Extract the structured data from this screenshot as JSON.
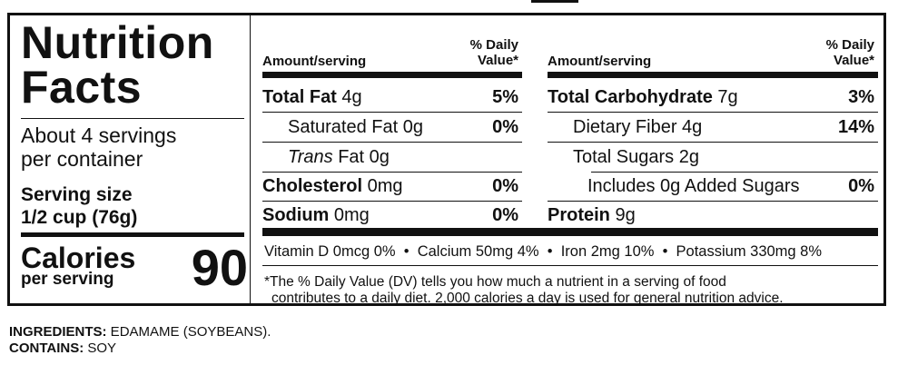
{
  "label": {
    "title_line1": "Nutrition",
    "title_line2": "Facts",
    "servings_line1": "About 4 servings",
    "servings_line2": "per container",
    "serving_size_label": "Serving size",
    "serving_size_value": "1/2 cup (76g)",
    "calories_label": "Calories",
    "calories_sub": "per serving",
    "calories_value": "90",
    "col_head_amount": "Amount/serving",
    "col_head_dv_line1": "% Daily",
    "col_head_dv_line2": "Value*",
    "left_rows": [
      {
        "name": "Total Fat",
        "amount": " 4g",
        "dv": "5%"
      },
      {
        "name": "Saturated Fat",
        "amount": " 0g",
        "dv": "0%"
      },
      {
        "name": "Trans",
        "amount": " Fat 0g",
        "dv": ""
      },
      {
        "name": "Cholesterol",
        "amount": " 0mg",
        "dv": "0%"
      },
      {
        "name": "Sodium",
        "amount": " 0mg",
        "dv": "0%"
      }
    ],
    "right_rows": [
      {
        "name": "Total Carbohydrate",
        "amount": " 7g",
        "dv": "3%"
      },
      {
        "name": "Dietary Fiber",
        "amount": " 4g",
        "dv": "14%"
      },
      {
        "name": "Total Sugars",
        "amount": " 2g",
        "dv": ""
      },
      {
        "name": "Includes 0g Added Sugars",
        "amount": "",
        "dv": "0%"
      },
      {
        "name": "Protein",
        "amount": " 9g",
        "dv": ""
      }
    ],
    "vitamins": "Vitamin D 0mcg 0%  •  Calcium 50mg 4%  •  Iron 2mg 10%  •  Potassium 330mg 8%",
    "footnote_line1": "*The % Daily Value (DV) tells you how much a nutrient in a serving of food",
    "footnote_line2": "contributes to a daily diet. 2,000 calories a day is used for general nutrition advice."
  },
  "ingredients": {
    "ingredients_label": "INGREDIENTS:",
    "ingredients_value": " EDAMAME (SOYBEANS).",
    "contains_label": "CONTAINS:",
    "contains_value": " SOY"
  }
}
